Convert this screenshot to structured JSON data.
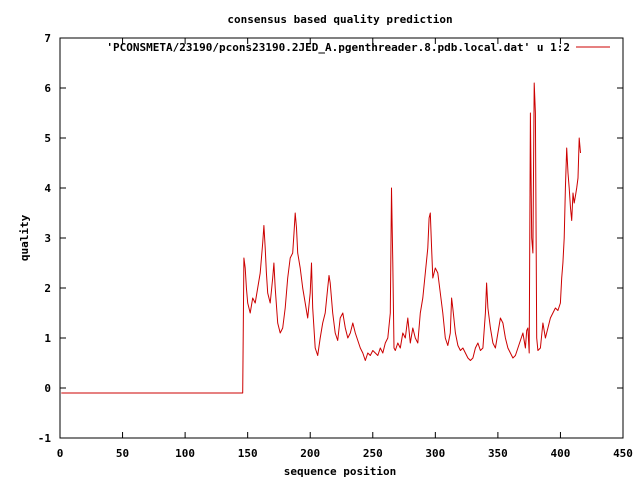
{
  "chart_data": {
    "type": "line",
    "title": "consensus based quality prediction",
    "xlabel": "sequence position",
    "ylabel": "quality",
    "xlim": [
      0,
      450
    ],
    "ylim": [
      -1,
      7
    ],
    "xticks": [
      0,
      50,
      100,
      150,
      200,
      250,
      300,
      350,
      400,
      450
    ],
    "yticks": [
      -1,
      0,
      1,
      2,
      3,
      4,
      5,
      6,
      7
    ],
    "grid": false,
    "legend_position": "top-right",
    "series": [
      {
        "name": "'PCONSMETA/23190/pcons23190.2JED_A.pgenthreader.8.pdb.local.dat' u 1:2",
        "color": "#cc0000",
        "points": [
          [
            1,
            -0.1
          ],
          [
            146,
            -0.1
          ],
          [
            147,
            2.6
          ],
          [
            148,
            2.4
          ],
          [
            149,
            2.0
          ],
          [
            150,
            1.7
          ],
          [
            152,
            1.5
          ],
          [
            154,
            1.8
          ],
          [
            156,
            1.7
          ],
          [
            158,
            2.0
          ],
          [
            160,
            2.3
          ],
          [
            162,
            2.9
          ],
          [
            163,
            3.25
          ],
          [
            164,
            2.8
          ],
          [
            165,
            2.3
          ],
          [
            166,
            1.9
          ],
          [
            168,
            1.7
          ],
          [
            170,
            2.2
          ],
          [
            171,
            2.5
          ],
          [
            172,
            2.0
          ],
          [
            174,
            1.3
          ],
          [
            176,
            1.1
          ],
          [
            178,
            1.2
          ],
          [
            180,
            1.6
          ],
          [
            182,
            2.2
          ],
          [
            184,
            2.6
          ],
          [
            186,
            2.7
          ],
          [
            187,
            3.1
          ],
          [
            188,
            3.5
          ],
          [
            189,
            3.2
          ],
          [
            190,
            2.7
          ],
          [
            192,
            2.4
          ],
          [
            194,
            2.0
          ],
          [
            196,
            1.7
          ],
          [
            198,
            1.4
          ],
          [
            200,
            1.9
          ],
          [
            201,
            2.5
          ],
          [
            202,
            1.6
          ],
          [
            204,
            0.8
          ],
          [
            206,
            0.65
          ],
          [
            208,
            1.0
          ],
          [
            210,
            1.3
          ],
          [
            212,
            1.5
          ],
          [
            214,
            2.0
          ],
          [
            215,
            2.25
          ],
          [
            216,
            2.1
          ],
          [
            218,
            1.5
          ],
          [
            220,
            1.1
          ],
          [
            222,
            0.95
          ],
          [
            224,
            1.4
          ],
          [
            226,
            1.5
          ],
          [
            228,
            1.2
          ],
          [
            230,
            1.0
          ],
          [
            232,
            1.1
          ],
          [
            234,
            1.3
          ],
          [
            236,
            1.1
          ],
          [
            238,
            0.95
          ],
          [
            240,
            0.8
          ],
          [
            242,
            0.7
          ],
          [
            244,
            0.55
          ],
          [
            246,
            0.7
          ],
          [
            248,
            0.65
          ],
          [
            250,
            0.75
          ],
          [
            252,
            0.7
          ],
          [
            254,
            0.65
          ],
          [
            256,
            0.8
          ],
          [
            258,
            0.7
          ],
          [
            260,
            0.9
          ],
          [
            262,
            1.0
          ],
          [
            264,
            1.5
          ],
          [
            265,
            4.0
          ],
          [
            266,
            2.5
          ],
          [
            267,
            0.8
          ],
          [
            268,
            0.75
          ],
          [
            270,
            0.9
          ],
          [
            272,
            0.8
          ],
          [
            274,
            1.1
          ],
          [
            276,
            1.0
          ],
          [
            278,
            1.4
          ],
          [
            280,
            0.9
          ],
          [
            282,
            1.2
          ],
          [
            284,
            1.0
          ],
          [
            286,
            0.9
          ],
          [
            288,
            1.5
          ],
          [
            290,
            1.8
          ],
          [
            292,
            2.3
          ],
          [
            294,
            2.8
          ],
          [
            295,
            3.4
          ],
          [
            296,
            3.5
          ],
          [
            297,
            2.8
          ],
          [
            298,
            2.2
          ],
          [
            300,
            2.4
          ],
          [
            302,
            2.3
          ],
          [
            304,
            1.9
          ],
          [
            306,
            1.5
          ],
          [
            308,
            1.0
          ],
          [
            310,
            0.85
          ],
          [
            312,
            1.1
          ],
          [
            313,
            1.8
          ],
          [
            314,
            1.6
          ],
          [
            316,
            1.1
          ],
          [
            318,
            0.85
          ],
          [
            320,
            0.75
          ],
          [
            322,
            0.8
          ],
          [
            324,
            0.7
          ],
          [
            326,
            0.6
          ],
          [
            328,
            0.55
          ],
          [
            330,
            0.6
          ],
          [
            332,
            0.8
          ],
          [
            334,
            0.9
          ],
          [
            336,
            0.75
          ],
          [
            338,
            0.8
          ],
          [
            340,
            1.5
          ],
          [
            341,
            2.1
          ],
          [
            342,
            1.6
          ],
          [
            344,
            1.2
          ],
          [
            346,
            0.9
          ],
          [
            348,
            0.8
          ],
          [
            350,
            1.1
          ],
          [
            352,
            1.4
          ],
          [
            354,
            1.3
          ],
          [
            356,
            1.0
          ],
          [
            358,
            0.8
          ],
          [
            360,
            0.7
          ],
          [
            362,
            0.6
          ],
          [
            364,
            0.65
          ],
          [
            366,
            0.8
          ],
          [
            368,
            0.95
          ],
          [
            370,
            1.1
          ],
          [
            372,
            0.8
          ],
          [
            373,
            1.15
          ],
          [
            374,
            1.2
          ],
          [
            375,
            0.7
          ],
          [
            376,
            5.5
          ],
          [
            377,
            3.0
          ],
          [
            378,
            2.7
          ],
          [
            379,
            6.1
          ],
          [
            380,
            5.5
          ],
          [
            381,
            1.0
          ],
          [
            382,
            0.75
          ],
          [
            384,
            0.8
          ],
          [
            386,
            1.3
          ],
          [
            388,
            1.0
          ],
          [
            390,
            1.2
          ],
          [
            392,
            1.4
          ],
          [
            394,
            1.5
          ],
          [
            396,
            1.6
          ],
          [
            398,
            1.55
          ],
          [
            400,
            1.7
          ],
          [
            401,
            2.2
          ],
          [
            402,
            2.5
          ],
          [
            403,
            3.0
          ],
          [
            404,
            4.0
          ],
          [
            405,
            4.8
          ],
          [
            406,
            4.3
          ],
          [
            407,
            4.0
          ],
          [
            408,
            3.6
          ],
          [
            409,
            3.35
          ],
          [
            410,
            3.9
          ],
          [
            411,
            3.7
          ],
          [
            412,
            3.85
          ],
          [
            413,
            4.0
          ],
          [
            414,
            4.2
          ],
          [
            415,
            5.0
          ],
          [
            416,
            4.7
          ]
        ]
      }
    ]
  }
}
